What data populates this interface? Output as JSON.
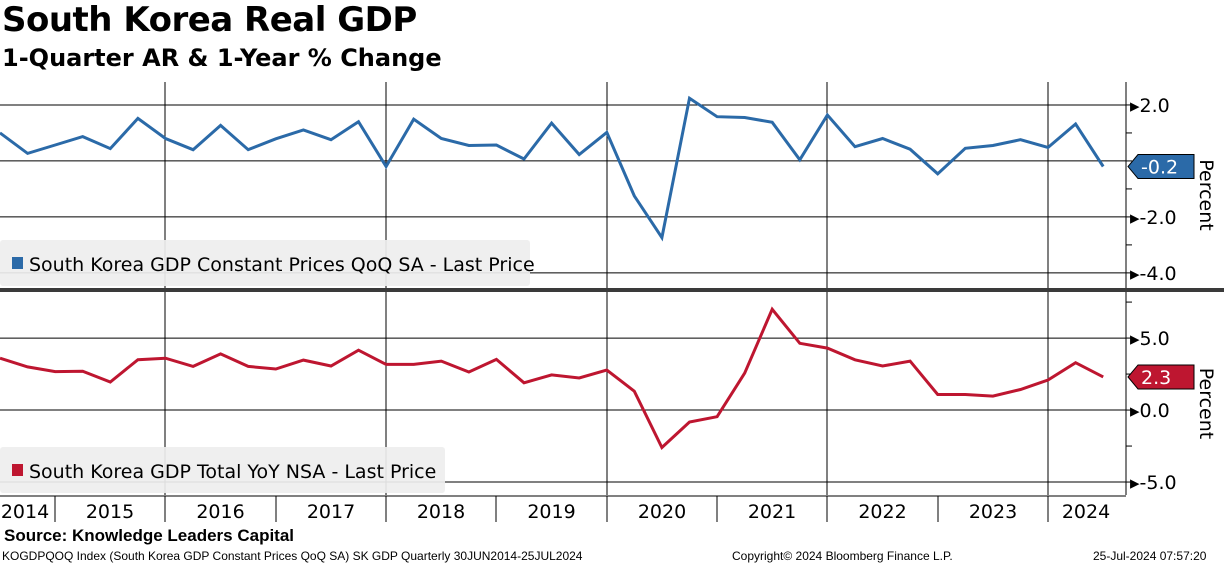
{
  "chart_data": [
    {
      "type": "line",
      "title": "South Korea Real GDP",
      "subtitle": "1-Quarter AR & 1-Year % Change",
      "series": [
        {
          "name": "South Korea GDP Constant Prices QoQ SA - Last Price",
          "color": "#2b6aa8",
          "values": [
            1.0,
            0.27,
            0.57,
            0.87,
            0.44,
            1.52,
            0.8,
            0.4,
            1.27,
            0.4,
            0.79,
            1.11,
            0.76,
            1.4,
            -0.2,
            1.49,
            0.8,
            0.55,
            0.57,
            0.07,
            1.35,
            0.23,
            1.02,
            -1.25,
            -2.74,
            2.24,
            1.58,
            1.55,
            1.38,
            0.04,
            1.64,
            0.51,
            0.8,
            0.42,
            -0.46,
            0.45,
            0.55,
            0.76,
            0.48,
            1.32,
            -0.2
          ]
        }
      ],
      "x": "Quarterly Q2 2014 - Q2 2024",
      "ylabel": "Percent",
      "ylim": [
        -4.54,
        2.82
      ],
      "yticks": [
        "2.0",
        "-2.0",
        "-4.0"
      ],
      "last_value_label": "-0.2",
      "grid": true,
      "legend": "bottom-left"
    },
    {
      "type": "line",
      "series": [
        {
          "name": "South Korea GDP Total YoY NSA - Last Price",
          "color": "#be1630",
          "values": [
            3.6,
            3.0,
            2.67,
            2.7,
            1.95,
            3.5,
            3.6,
            3.03,
            3.9,
            3.03,
            2.85,
            3.47,
            3.06,
            4.16,
            3.17,
            3.17,
            3.4,
            2.64,
            3.52,
            1.89,
            2.44,
            2.23,
            2.78,
            1.31,
            -2.6,
            -0.83,
            -0.46,
            2.57,
            7.0,
            4.64,
            4.3,
            3.49,
            3.06,
            3.4,
            1.08,
            1.08,
            0.97,
            1.43,
            2.09,
            3.29,
            2.3
          ]
        }
      ],
      "ylabel": "Percent",
      "ylim": [
        -5.9,
        8.2
      ],
      "yticks": [
        "5.0",
        "0.0",
        "-5.0"
      ],
      "last_value_label": "2.3",
      "grid": true,
      "legend": "bottom-left"
    }
  ],
  "x_axis_years": [
    "2014",
    "2015",
    "2016",
    "2017",
    "2018",
    "2019",
    "2020",
    "2021",
    "2022",
    "2023",
    "2024"
  ],
  "source": "Source: Knowledge Leaders Capital",
  "footer": {
    "left": "KOGDPQOQ Index (South Korea GDP Constant Prices QoQ SA) SK GDP  Quarterly 30JUN2014-25JUL2024",
    "center": "Copyright© 2024 Bloomberg Finance L.P.",
    "right": "25-Jul-2024 07:57:20"
  }
}
